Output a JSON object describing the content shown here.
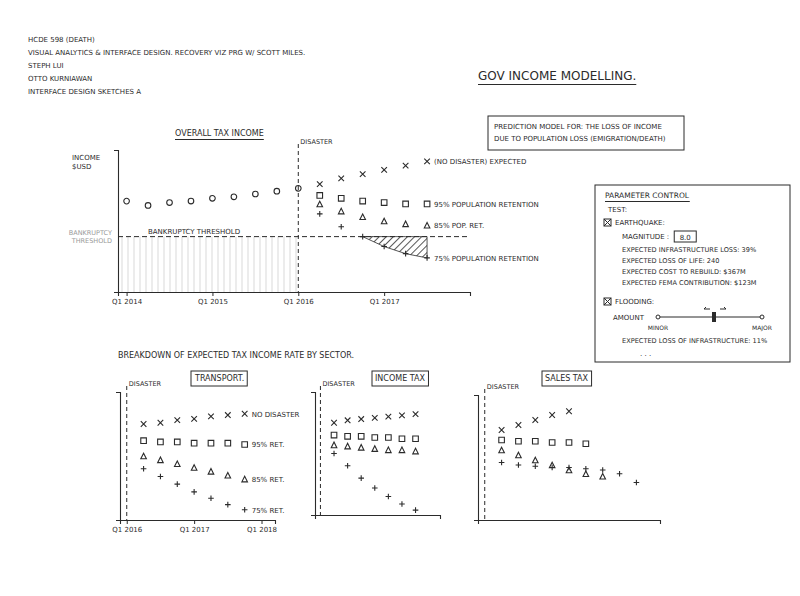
{
  "notes": [
    "HCDE 598 (DEATH)",
    "VISUAL ANALYTICS & INTERFACE DESIGN. RECOVERY VIZ PRG W/ SCOTT MILES.",
    "STEPH LUI",
    "OTTO KURNIAWAN",
    "INTERFACE DESIGN SKETCHES A"
  ],
  "page_title": "GOV INCOME MODELLING.",
  "prediction_box": [
    "PREDICTION MODEL FOR: THE LOSS OF INCOME",
    "DUE TO POPULATION LOSS (EMIGRATION/DEATH)"
  ],
  "parameter_control": {
    "title": "PARAMETER CONTROL",
    "test_label": "TEST:",
    "earthquake_label": "EARTHQUAKE:",
    "magnitude_label": "MAGNITUDE :",
    "magnitude": "8.0",
    "earthquake_lines": [
      "EXPECTED INFRASTRUCTURE LOSS: 39%",
      "EXPECTED LOSS OF LIFE: 240",
      "EXPECTED COST TO REBUILD: $367M",
      "EXPECTED FEMA CONTRIBUTION: $123M"
    ],
    "flooding_label": "FLOODING:",
    "amount_label": "AMOUNT",
    "slider_min_label": "MINOR",
    "slider_max_label": "MAJOR",
    "flooding_lines": [
      "EXPECTED LOSS OF INFRASTRUCTURE: 11%"
    ],
    "more": ". . ."
  },
  "breakdown_title": "BREAKDOWN OF EXPECTED TAX INCOME RATE BY SECTOR.",
  "chart_data": [
    {
      "type": "scatter",
      "title": "OVERALL TAX INCOME",
      "y_label": "INCOME $USD",
      "x": [
        2014,
        2014.25,
        2014.5,
        2014.75,
        2015,
        2015.25,
        2015.5,
        2015.75,
        2016,
        2016.25,
        2016.5,
        2016.75,
        2017,
        2017.25,
        2017.5
      ],
      "xlim": [
        2013.9,
        2018.0
      ],
      "xticks": [
        {
          "value": 2014,
          "label": "Q1 2014"
        },
        {
          "value": 2015,
          "label": "Q1 2015"
        },
        {
          "value": 2016,
          "label": "Q1 2016"
        },
        {
          "value": 2017,
          "label": "Q1 2017"
        }
      ],
      "ylim": [
        0,
        100
      ],
      "tick_labels": "x",
      "disaster": {
        "x": 2016,
        "label": "DISASTER"
      },
      "threshold": {
        "value": 39,
        "label": "BANKRUPTCY THRESHOLD",
        "axis_label": "BANKRUPTCY THRESHOLD"
      },
      "series": [
        {
          "color": "#2b2b2b",
          "marker": "circle",
          "values": [
            64,
            61,
            63,
            64,
            66,
            67,
            69,
            71,
            73,
            null,
            null,
            null,
            null,
            null,
            null
          ]
        },
        {
          "name": "(NO DISASTER) EXPECTED",
          "color": "#2b2b2b",
          "marker": "x",
          "values": [
            null,
            null,
            null,
            null,
            null,
            null,
            null,
            null,
            null,
            76,
            80,
            83,
            86,
            89,
            92
          ]
        },
        {
          "name": "95% POPULATION RETENTION",
          "color": "#2b2b2b",
          "marker": "square",
          "values": [
            null,
            null,
            null,
            null,
            null,
            null,
            null,
            null,
            null,
            68,
            66,
            64,
            63,
            62,
            62
          ]
        },
        {
          "name": "85% POP. RET.",
          "color": "#2b2b2b",
          "marker": "triangle",
          "values": [
            null,
            null,
            null,
            null,
            null,
            null,
            null,
            null,
            null,
            62,
            57,
            53,
            50,
            48,
            47
          ]
        },
        {
          "name": "75% POPULATION RETENTION",
          "color": "#2b2b2b",
          "marker": "plus",
          "values": [
            null,
            null,
            null,
            null,
            null,
            null,
            null,
            null,
            null,
            55,
            46,
            39,
            32,
            27,
            24
          ]
        }
      ]
    },
    {
      "type": "scatter",
      "title": "TRANSPORT.",
      "x": [
        2016.25,
        2016.5,
        2016.75,
        2017,
        2017.25,
        2017.5,
        2017.75
      ],
      "xlim": [
        2015.9,
        2018.2
      ],
      "xticks": [
        {
          "value": 2016,
          "label": "Q1 2016"
        },
        {
          "value": 2017,
          "label": "Q1 2017"
        },
        {
          "value": 2018,
          "label": "Q1 2018"
        }
      ],
      "ylim": [
        0,
        100
      ],
      "tick_labels": "x",
      "disaster": {
        "x": 2016,
        "label": "DISASTER"
      },
      "series": [
        {
          "name": "NO DISASTER",
          "color": "#2b2b2b",
          "marker": "x",
          "values": [
            75,
            76,
            78,
            79,
            81,
            82,
            83
          ]
        },
        {
          "name": "95% RET.",
          "color": "#2b2b2b",
          "marker": "square",
          "values": [
            62,
            61,
            61,
            60,
            60,
            60,
            59
          ]
        },
        {
          "name": "85% RET.",
          "color": "#2b2b2b",
          "marker": "triangle",
          "values": [
            50,
            47,
            44,
            41,
            38,
            35,
            32
          ]
        },
        {
          "name": "75% RET.",
          "color": "#2b2b2b",
          "marker": "plus",
          "values": [
            40,
            34,
            28,
            22,
            17,
            12,
            8
          ]
        }
      ]
    },
    {
      "type": "scatter",
      "title": "INCOME TAX",
      "x": [
        2016.25,
        2016.5,
        2016.75,
        2017,
        2017.25,
        2017.5,
        2017.75
      ],
      "xlim": [
        2015.9,
        2018.2
      ],
      "ylim": [
        0,
        100
      ],
      "tick_labels": false,
      "disaster": {
        "x": 2016,
        "label": "DISASTER"
      },
      "series": [
        {
          "color": "#2b2b2b",
          "marker": "x",
          "values": [
            75,
            77,
            78,
            79,
            80,
            81,
            82
          ]
        },
        {
          "color": "#2b2b2b",
          "marker": "square",
          "values": [
            65,
            64,
            64,
            63,
            63,
            62,
            62
          ]
        },
        {
          "color": "#2b2b2b",
          "marker": "triangle",
          "values": [
            57,
            56,
            55,
            54,
            53,
            53,
            52
          ]
        },
        {
          "color": "#2b2b2b",
          "marker": "plus",
          "values": [
            50,
            40,
            30,
            22,
            15,
            9,
            4
          ]
        }
      ]
    },
    {
      "type": "scatter",
      "title": "SALES TAX",
      "x": [
        2016.25,
        2016.5,
        2016.75,
        2017,
        2017.25,
        2017.5,
        2017.75,
        2018,
        2018.25
      ],
      "xlim": [
        2015.9,
        2018.6
      ],
      "ylim": [
        0,
        100
      ],
      "tick_labels": false,
      "disaster": {
        "x": 2016,
        "label": "DISASTER"
      },
      "series": [
        {
          "color": "#2b2b2b",
          "marker": "x",
          "values": [
            72,
            76,
            80,
            84,
            87,
            null,
            null,
            null,
            null
          ]
        },
        {
          "color": "#2b2b2b",
          "marker": "square",
          "values": [
            64,
            63,
            63,
            62,
            62,
            61,
            null,
            null,
            null
          ]
        },
        {
          "color": "#2b2b2b",
          "marker": "triangle",
          "values": [
            56,
            52,
            48,
            44,
            40,
            37,
            35,
            null,
            null
          ]
        },
        {
          "color": "#2b2b2b",
          "marker": "plus",
          "values": [
            46,
            44,
            43,
            42,
            42,
            41,
            40,
            37,
            30
          ]
        }
      ]
    }
  ]
}
